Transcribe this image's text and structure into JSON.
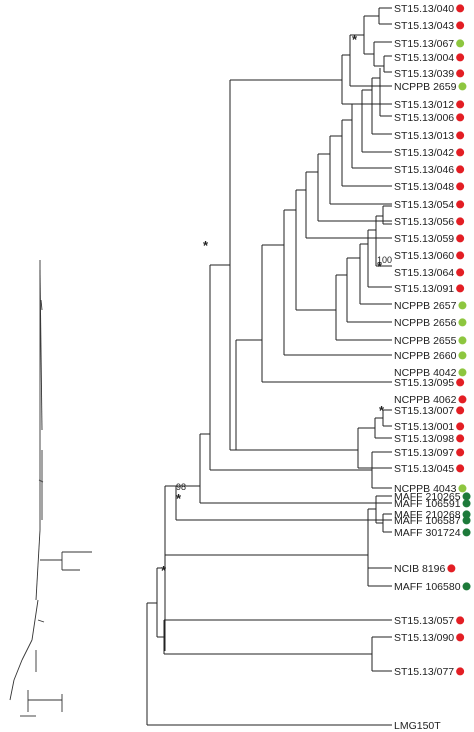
{
  "colors": {
    "red": "#e31e24",
    "light_green": "#8dc63f",
    "dark_green": "#1d7a3a",
    "line": "#222222"
  },
  "leaves": [
    {
      "label": "ST15.13/040",
      "marker": "red"
    },
    {
      "label": "ST15.13/043",
      "marker": "red"
    },
    {
      "label": "ST15.13/067",
      "marker": "light_green"
    },
    {
      "label": "ST15.13/004",
      "marker": "red"
    },
    {
      "label": "ST15.13/039",
      "marker": "red"
    },
    {
      "label": "NCPPB 2659",
      "marker": "light_green"
    },
    {
      "label": "ST15.13/012",
      "marker": "red"
    },
    {
      "label": "ST15.13/006",
      "marker": "red"
    },
    {
      "label": "ST15.13/013",
      "marker": "red"
    },
    {
      "label": "ST15.13/042",
      "marker": "red"
    },
    {
      "label": "ST15.13/046",
      "marker": "red"
    },
    {
      "label": "ST15.13/048",
      "marker": "red"
    },
    {
      "label": "ST15.13/054",
      "marker": "red"
    },
    {
      "label": "ST15.13/056",
      "marker": "red"
    },
    {
      "label": "ST15.13/059",
      "marker": "red"
    },
    {
      "label": "ST15.13/060",
      "marker": "red"
    },
    {
      "label": "ST15.13/064",
      "marker": "red"
    },
    {
      "label": "ST15.13/091",
      "marker": "red"
    },
    {
      "label": "NCPPB 2657",
      "marker": "light_green"
    },
    {
      "label": "NCPPB 2656",
      "marker": "light_green"
    },
    {
      "label": "NCPPB 2655",
      "marker": "light_green"
    },
    {
      "label": "NCPPB 2660",
      "marker": "light_green"
    },
    {
      "label": "NCPPB 4042",
      "marker": "light_green"
    },
    {
      "label": "ST15.13/095",
      "marker": "red"
    },
    {
      "label": "NCPPB 4062",
      "marker": "red"
    },
    {
      "label": "ST15.13/007",
      "marker": "red"
    },
    {
      "label": "ST15.13/001",
      "marker": "red"
    },
    {
      "label": "ST15.13/098",
      "marker": "red"
    },
    {
      "label": "ST15.13/097",
      "marker": "red"
    },
    {
      "label": "ST15.13/045",
      "marker": "red"
    },
    {
      "label": "NCPPB 4043",
      "marker": "light_green"
    },
    {
      "label": "MAFF 106591",
      "marker": "dark_green"
    },
    {
      "label": "MAFF 106587",
      "marker": "dark_green"
    },
    {
      "label": "MAFF 210265",
      "marker": "dark_green"
    },
    {
      "label": "MAFF 210268",
      "marker": "dark_green"
    },
    {
      "label": "MAFF 301724",
      "marker": "dark_green"
    },
    {
      "label": "NCIB 8196",
      "marker": "red"
    },
    {
      "label": "MAFF 106580",
      "marker": "dark_green"
    },
    {
      "label": "ST15.13/057",
      "marker": "red"
    },
    {
      "label": "ST15.13/090",
      "marker": "red"
    },
    {
      "label": "ST15.13/077",
      "marker": "red"
    },
    {
      "label": "LMG150T",
      "marker": ""
    }
  ],
  "support_labels": {
    "s1": "*",
    "s2": "100",
    "s3": "*",
    "s4": "*",
    "s5": "*",
    "s6": "98",
    "s7": "*",
    "s8": "*"
  }
}
